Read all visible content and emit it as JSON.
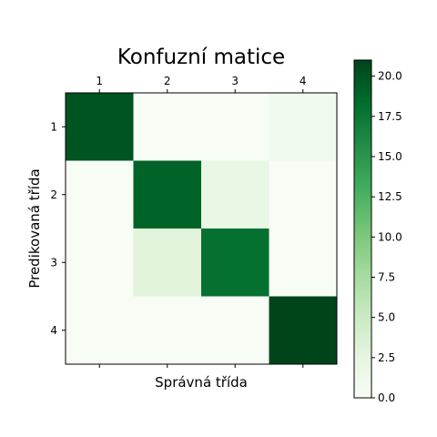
{
  "chart_data": {
    "type": "heatmap",
    "title": "Konfuzní matice",
    "xlabel": "Správná třída",
    "ylabel": "Predikovaná třída",
    "x_categories": [
      "1",
      "2",
      "3",
      "4"
    ],
    "y_categories": [
      "1",
      "2",
      "3",
      "4"
    ],
    "x_ticks_position": "top",
    "matrix": [
      [
        20,
        0,
        0,
        1
      ],
      [
        0,
        19,
        2,
        0
      ],
      [
        0,
        3,
        18,
        0
      ],
      [
        0,
        0,
        0,
        21
      ]
    ],
    "colormap": "Greens",
    "color_low": "#f7fcf5",
    "color_high": "#00441b",
    "vmin": 0,
    "vmax": 21,
    "colorbar": {
      "ticks": [
        0.0,
        2.5,
        5.0,
        7.5,
        10.0,
        12.5,
        15.0,
        17.5,
        20.0
      ],
      "tick_labels": [
        "0.0",
        "2.5",
        "5.0",
        "7.5",
        "10.0",
        "12.5",
        "15.0",
        "17.5",
        "20.0"
      ],
      "position": "right"
    }
  }
}
